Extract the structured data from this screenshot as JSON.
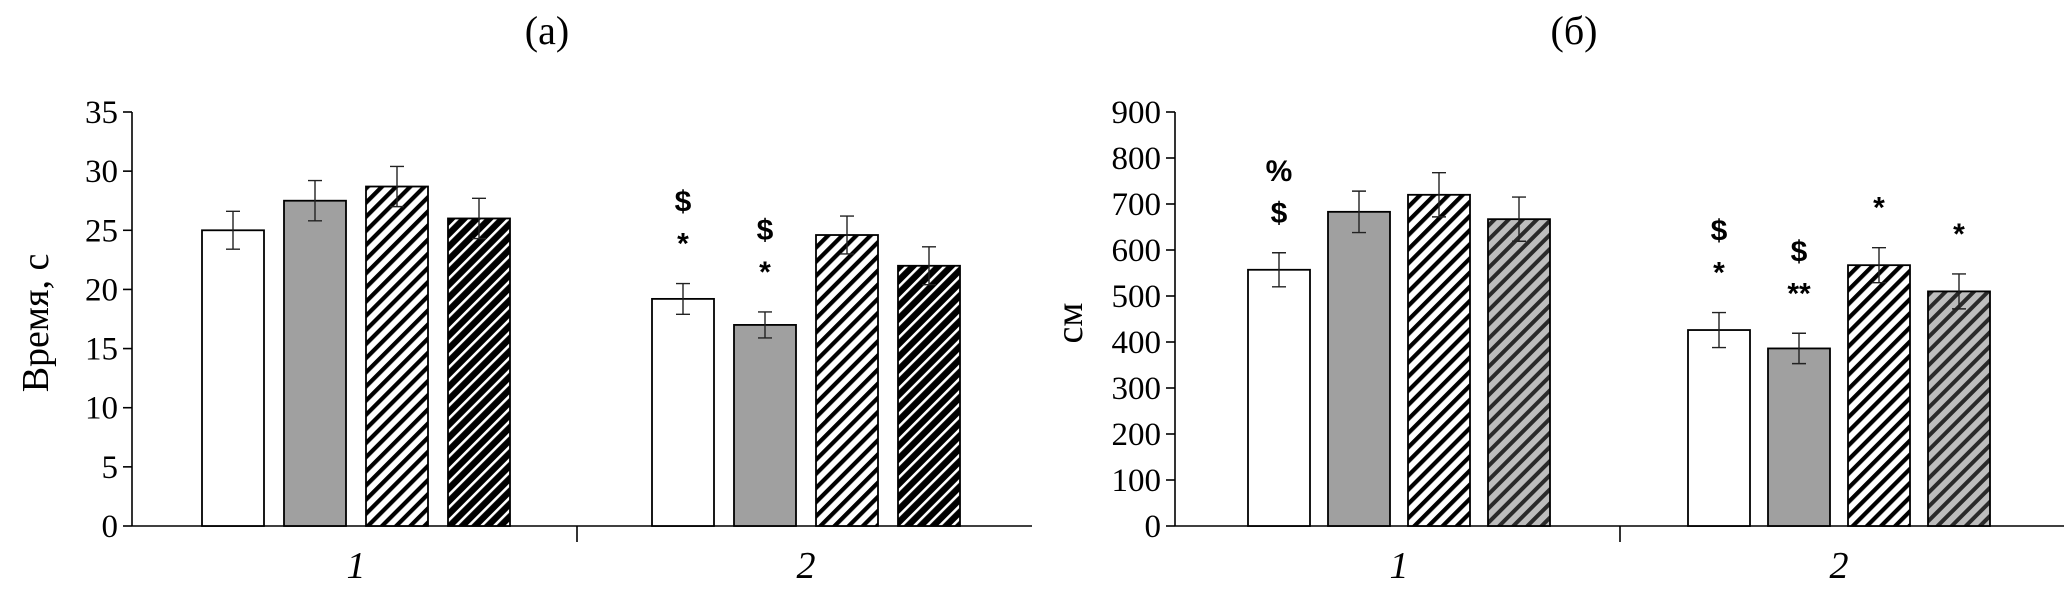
{
  "chart_data": [
    {
      "type": "bar",
      "title": "(а)",
      "ylabel": "Время, с",
      "xlabel": "",
      "ylim": [
        0,
        35
      ],
      "yticks": [
        0,
        5,
        10,
        15,
        20,
        25,
        30,
        35
      ],
      "categories": [
        "1",
        "2"
      ],
      "grid": false,
      "series": [
        {
          "fill": "white",
          "color": "#ffffff",
          "values": [
            25.0,
            19.2
          ],
          "errors": [
            1.6,
            1.3
          ]
        },
        {
          "fill": "gray",
          "color": "#a0a0a0",
          "values": [
            27.5,
            17.0
          ],
          "errors": [
            1.7,
            1.1
          ]
        },
        {
          "fill": "white-hatch",
          "color": "#ffffff",
          "values": [
            28.7,
            24.6
          ],
          "errors": [
            1.7,
            1.6
          ]
        },
        {
          "fill": "black-hatch",
          "color": "#111111",
          "values": [
            26.0,
            22.0
          ],
          "errors": [
            1.7,
            1.6
          ]
        }
      ],
      "annotations": [
        {
          "category": 1,
          "series": 0,
          "lines": [
            "$",
            "*"
          ]
        },
        {
          "category": 1,
          "series": 1,
          "lines": [
            "$",
            "*"
          ]
        }
      ]
    },
    {
      "type": "bar",
      "title": "(б)",
      "ylabel": "см",
      "xlabel": "",
      "ylim": [
        0,
        900
      ],
      "yticks": [
        0,
        100,
        200,
        300,
        400,
        500,
        600,
        700,
        800,
        900
      ],
      "categories": [
        "1",
        "2"
      ],
      "grid": false,
      "series": [
        {
          "fill": "white",
          "color": "#ffffff",
          "values": [
            557,
            426
          ],
          "errors": [
            37,
            38
          ]
        },
        {
          "fill": "gray",
          "color": "#a0a0a0",
          "values": [
            683,
            386
          ],
          "errors": [
            45,
            33
          ]
        },
        {
          "fill": "white-hatch",
          "color": "#ffffff",
          "values": [
            720,
            567
          ],
          "errors": [
            48,
            38
          ]
        },
        {
          "fill": "gray-hatch",
          "color": "#a0a0a0",
          "values": [
            667,
            510
          ],
          "errors": [
            48,
            38
          ]
        }
      ],
      "annotations": [
        {
          "category": 0,
          "series": 0,
          "lines": [
            "%",
            "$"
          ]
        },
        {
          "category": 1,
          "series": 0,
          "lines": [
            "$",
            "*"
          ]
        },
        {
          "category": 1,
          "series": 1,
          "lines": [
            "$",
            "**"
          ]
        },
        {
          "category": 1,
          "series": 2,
          "lines": [
            "*"
          ]
        },
        {
          "category": 1,
          "series": 3,
          "lines": [
            "*"
          ]
        }
      ]
    }
  ]
}
